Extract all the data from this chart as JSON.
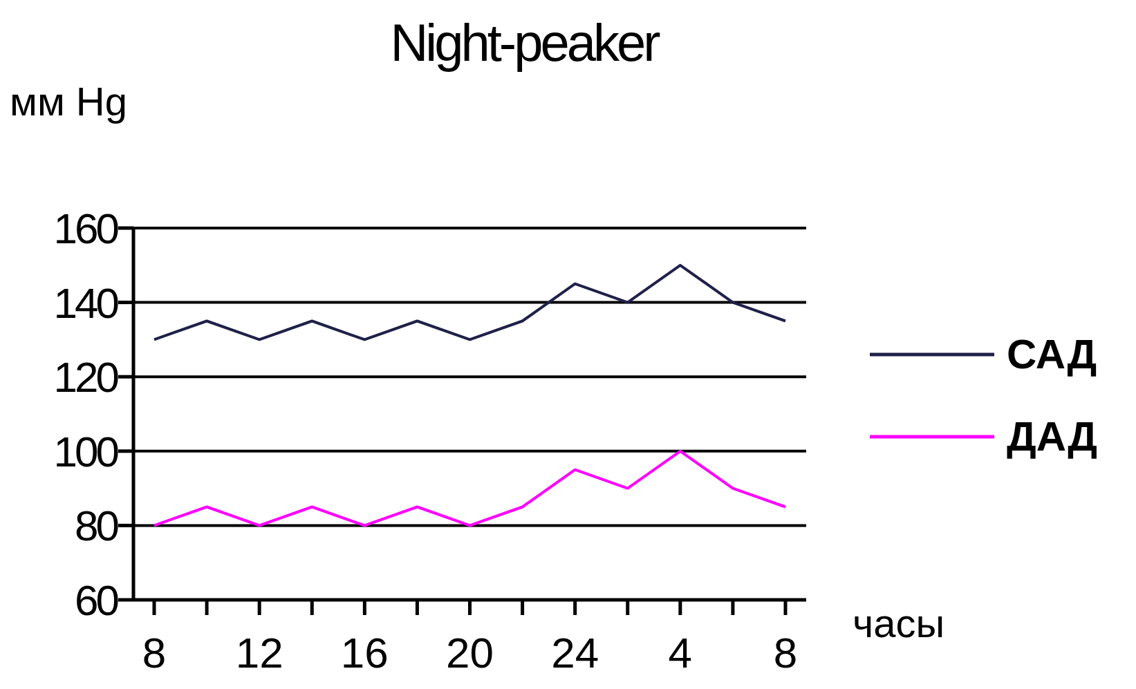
{
  "chart_data": {
    "type": "line",
    "title": "Night-peaker",
    "ylabel": "мм Hg",
    "xlabel": "часы",
    "categories": [
      "8",
      null,
      "12",
      null,
      "16",
      null,
      "20",
      null,
      "24",
      null,
      "4",
      null,
      "8"
    ],
    "series": [
      {
        "name": "САД",
        "color": "#1f2149",
        "values": [
          130,
          135,
          130,
          135,
          130,
          135,
          130,
          135,
          145,
          140,
          150,
          140,
          135
        ]
      },
      {
        "name": "ДАД",
        "color": "#ff00ff",
        "values": [
          80,
          85,
          80,
          85,
          80,
          85,
          80,
          85,
          95,
          90,
          100,
          90,
          85
        ]
      }
    ],
    "ylim": [
      60,
      160
    ],
    "yticks": [
      60,
      80,
      100,
      120,
      140,
      160
    ],
    "grid": "y",
    "legend": "right",
    "marker": "none",
    "line_style": "solid"
  }
}
